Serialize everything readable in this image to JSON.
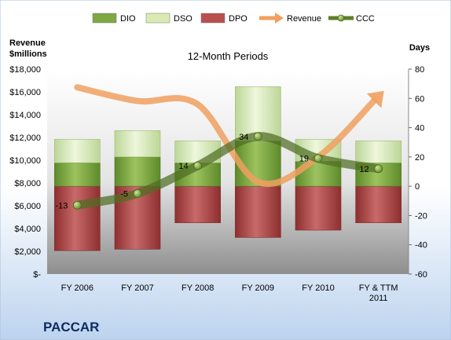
{
  "chart_data": {
    "type": "bar",
    "title": "12-Month Periods",
    "company": "PACCAR",
    "left_axis_label": [
      "Revenue",
      "$millions"
    ],
    "right_axis_label": "Days",
    "categories": [
      [
        "FY 2006"
      ],
      [
        "FY 2007"
      ],
      [
        "FY 2008"
      ],
      [
        "FY 2009"
      ],
      [
        "FY 2010"
      ],
      [
        "FY & TTM",
        "2011"
      ]
    ],
    "left_axis": {
      "min": 0,
      "max": 18000,
      "step": 2000,
      "tick_labels": [
        "$-",
        "$2,000",
        "$4,000",
        "$6,000",
        "$8,000",
        "$10,000",
        "$12,000",
        "$14,000",
        "$16,000",
        "$18,000"
      ]
    },
    "right_axis": {
      "min": -60,
      "max": 80,
      "step": 20,
      "tick_labels": [
        "-60",
        "-40",
        "-20",
        "0",
        "20",
        "40",
        "60",
        "80"
      ]
    },
    "legend": {
      "position": "top",
      "items": [
        {
          "name": "DIO",
          "kind": "bar",
          "color": "#7FA744"
        },
        {
          "name": "DSO",
          "kind": "bar",
          "color": "#D9EBB3"
        },
        {
          "name": "DPO",
          "kind": "bar",
          "color": "#B94F4F"
        },
        {
          "name": "Revenue",
          "kind": "arrow",
          "color": "#F0A060"
        },
        {
          "name": "CCC",
          "kind": "line-marker",
          "color": "#5F7F2A"
        }
      ]
    },
    "series": [
      {
        "name": "DPO",
        "axis": "right",
        "color": "#B94F4F",
        "values": [
          -44,
          -43,
          -25,
          -35,
          -30,
          -25
        ]
      },
      {
        "name": "DIO",
        "axis": "right",
        "color": "#7FA744",
        "values": [
          16,
          20,
          16,
          31,
          17,
          16
        ]
      },
      {
        "name": "DSO",
        "axis": "right",
        "color": "#D9EBB3",
        "values": [
          16,
          18,
          15,
          37,
          15,
          15
        ]
      },
      {
        "name": "Revenue",
        "axis": "left",
        "color": "#F0A060",
        "values": [
          16400,
          15200,
          14900,
          8100,
          10300,
          15600
        ]
      },
      {
        "name": "CCC",
        "axis": "right",
        "color": "#5F7F2A",
        "values": [
          -13,
          -5,
          14,
          34,
          19,
          12
        ],
        "labels": [
          "-13",
          "-5",
          "14",
          "34",
          "19",
          "12"
        ]
      }
    ],
    "grid": false
  }
}
